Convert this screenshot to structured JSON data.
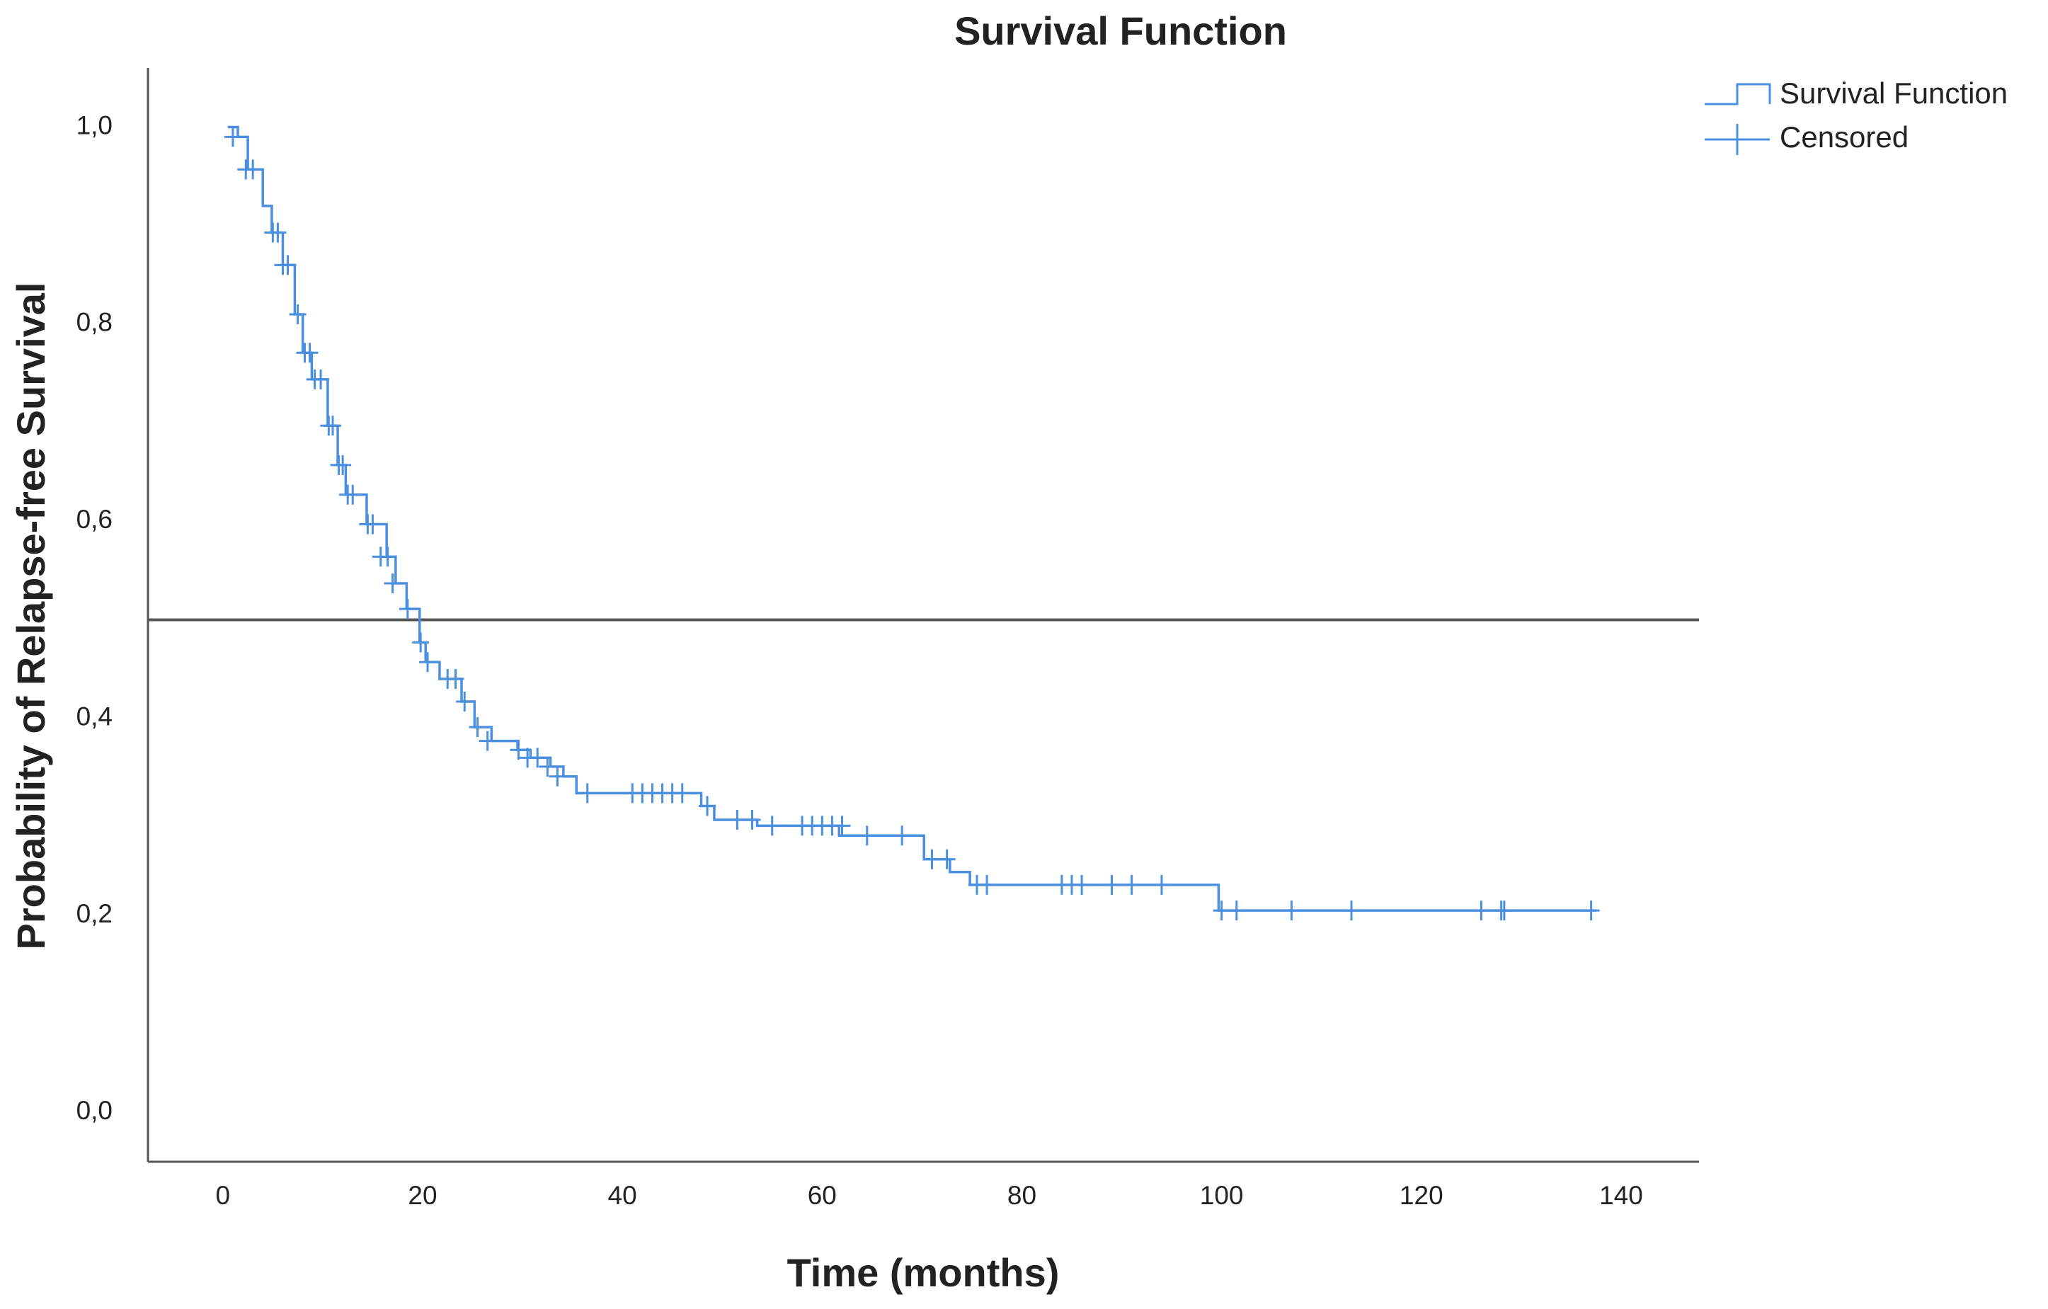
{
  "chart_data": {
    "type": "step",
    "title": "Survival Function",
    "x_label": "Time (months)",
    "y_label": "Probability of Relapse-free Survival",
    "xlim": [
      -7.5,
      147.8
    ],
    "ylim": [
      -0.05,
      1.06
    ],
    "xticks": [
      0,
      20,
      40,
      60,
      80,
      100,
      120,
      140
    ],
    "yticks": [
      {
        "value": 0,
        "label": "0,0"
      },
      {
        "value": 0.2,
        "label": "0,2"
      },
      {
        "value": 0.4,
        "label": "0,4"
      },
      {
        "value": 0.6,
        "label": "0,6"
      },
      {
        "value": 0.8,
        "label": "0,8"
      },
      {
        "value": 1,
        "label": "1,0"
      }
    ],
    "reference_line": {
      "y": 0.5,
      "color": "#555555"
    },
    "legend": "right",
    "series": [
      {
        "name": "Survival Function",
        "color": "#4a8fe0",
        "x": [
          0.5,
          1.5,
          2.5,
          4,
          4.9,
          6,
          7.2,
          8,
          8.9,
          10.5,
          11.5,
          12.3,
          14.4,
          16.4,
          17.3,
          18.4,
          19.7,
          20.3,
          21.7,
          23.9,
          25.2,
          26.9,
          29.5,
          30.8,
          32.8,
          34.1,
          35.4,
          47.9,
          49.2,
          53.5,
          61.7,
          70.2,
          72.8,
          74.8,
          99.7,
          137.5
        ],
        "values": [
          1.0,
          0.99,
          0.957,
          0.92,
          0.893,
          0.86,
          0.81,
          0.771,
          0.744,
          0.697,
          0.657,
          0.627,
          0.597,
          0.564,
          0.537,
          0.511,
          0.477,
          0.457,
          0.44,
          0.417,
          0.391,
          0.377,
          0.368,
          0.36,
          0.351,
          0.341,
          0.324,
          0.311,
          0.297,
          0.291,
          0.281,
          0.257,
          0.244,
          0.231,
          0.205,
          0.205
        ]
      },
      {
        "name": "Censored",
        "color": "#4a8fe0",
        "marker": "+",
        "x": [
          1,
          2.3,
          3,
          5,
          5.5,
          6,
          6.5,
          7.5,
          8.2,
          8.7,
          9.2,
          9.8,
          10.6,
          11,
          11.6,
          12,
          12.5,
          13,
          14.5,
          15,
          15.8,
          16.5,
          17,
          18.5,
          19.8,
          20.5,
          22.5,
          23.3,
          24.2,
          25.5,
          26.5,
          29.6,
          30.5,
          31.5,
          32.5,
          33.5,
          36.5,
          41,
          42,
          43,
          44,
          45,
          46,
          48.5,
          51.5,
          53,
          55,
          58,
          59,
          60,
          61,
          62,
          64.5,
          68,
          71,
          72.5,
          75.5,
          76.5,
          84,
          85,
          86,
          89,
          91,
          94,
          100,
          101.5,
          107,
          113,
          126,
          128,
          128.3,
          137
        ],
        "values": [
          0.99,
          0.957,
          0.957,
          0.893,
          0.893,
          0.86,
          0.86,
          0.81,
          0.771,
          0.771,
          0.744,
          0.744,
          0.697,
          0.697,
          0.657,
          0.657,
          0.627,
          0.627,
          0.597,
          0.597,
          0.564,
          0.564,
          0.537,
          0.511,
          0.477,
          0.457,
          0.44,
          0.44,
          0.417,
          0.391,
          0.377,
          0.368,
          0.36,
          0.36,
          0.351,
          0.341,
          0.324,
          0.324,
          0.324,
          0.324,
          0.324,
          0.324,
          0.324,
          0.311,
          0.297,
          0.297,
          0.291,
          0.291,
          0.291,
          0.291,
          0.291,
          0.291,
          0.281,
          0.281,
          0.257,
          0.257,
          0.231,
          0.231,
          0.231,
          0.231,
          0.231,
          0.231,
          0.231,
          0.231,
          0.205,
          0.205,
          0.205,
          0.205,
          0.205,
          0.205,
          0.205,
          0.205
        ]
      }
    ]
  }
}
